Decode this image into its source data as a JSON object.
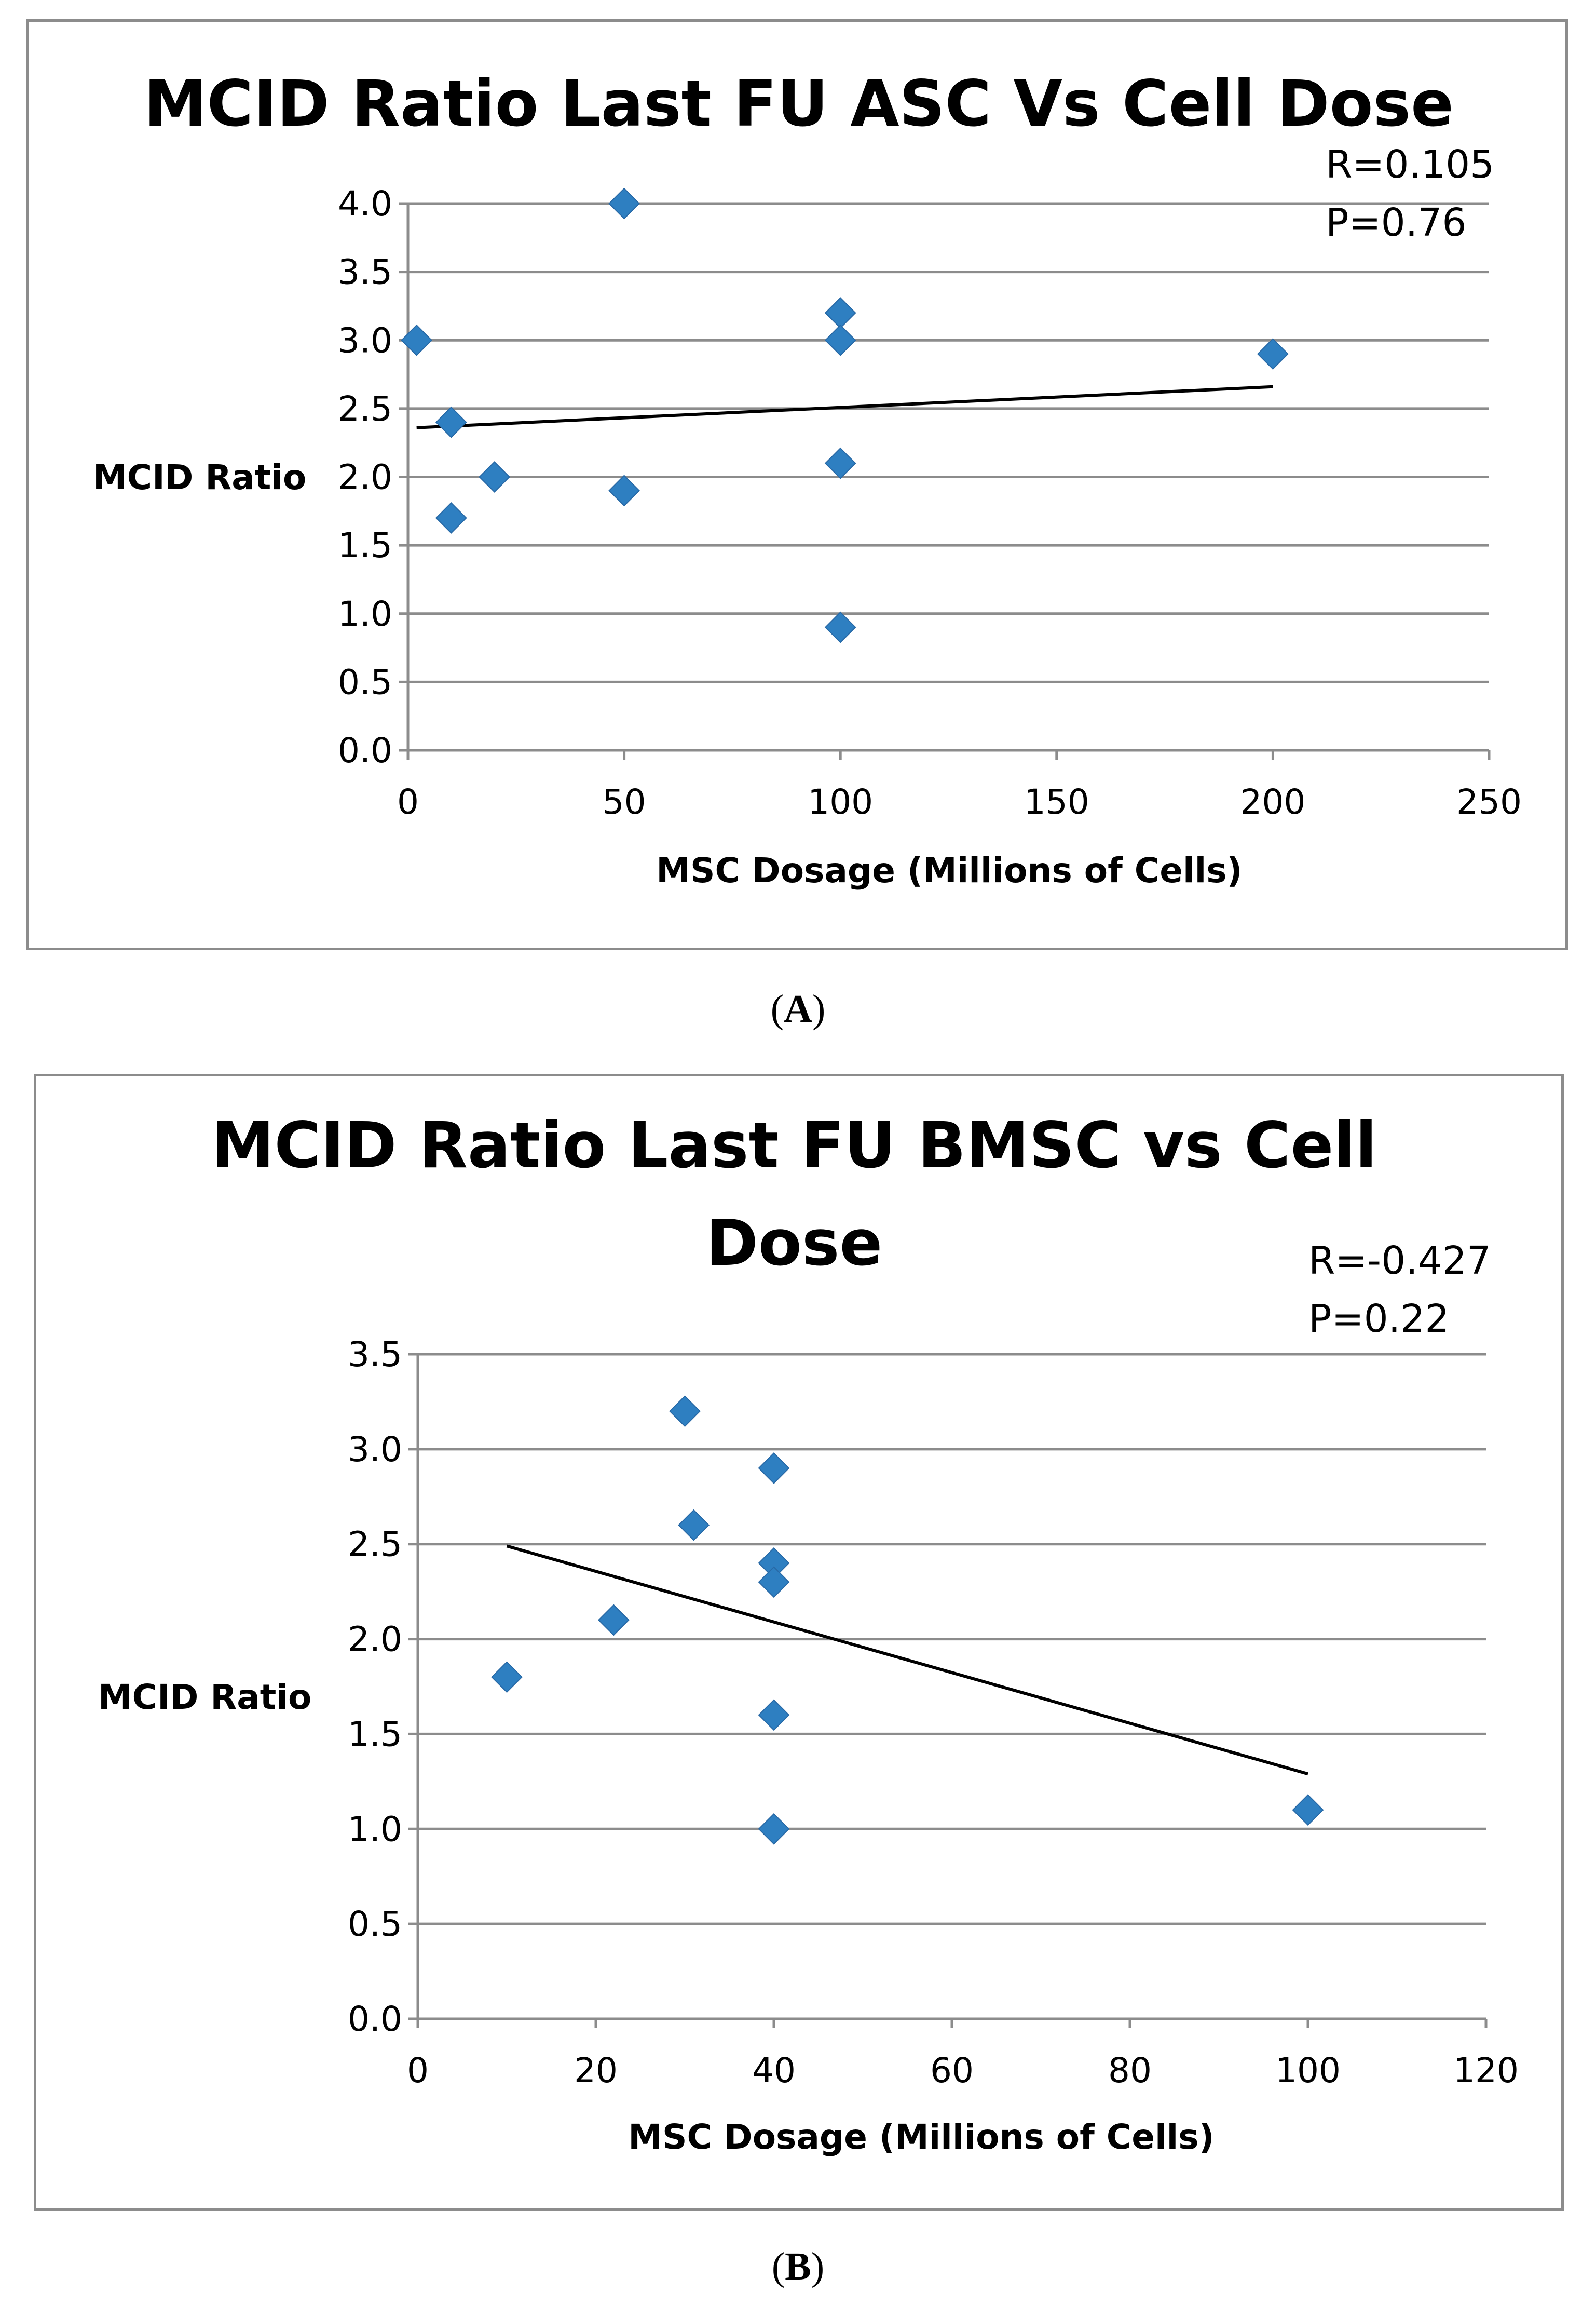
{
  "chart_data": [
    {
      "type": "scatter",
      "title": "MCID Ratio Last FU ASC Vs Cell Dose",
      "title_lines": [
        "MCID Ratio Last FU ASC Vs Cell Dose"
      ],
      "xlabel": "MSC Dosage (Millions of Cells)",
      "ylabel": "MCID Ratio",
      "xlim": [
        0,
        250
      ],
      "ylim": [
        0,
        4.0
      ],
      "x_ticks": [
        0,
        50,
        100,
        150,
        200,
        250
      ],
      "x_tick_labels": [
        "0",
        "50",
        "100",
        "150",
        "200",
        "250"
      ],
      "y_ticks": [
        0,
        0.5,
        1.0,
        1.5,
        2.0,
        2.5,
        3.0,
        3.5,
        4.0
      ],
      "y_tick_labels": [
        "0.0",
        "0.5",
        "1.0",
        "1.5",
        "2.0",
        "2.5",
        "3.0",
        "3.5",
        "4.0"
      ],
      "grid": true,
      "points": [
        {
          "x": 2,
          "y": 3.0
        },
        {
          "x": 10,
          "y": 2.4
        },
        {
          "x": 10,
          "y": 1.7
        },
        {
          "x": 20,
          "y": 2.0
        },
        {
          "x": 50,
          "y": 4.0
        },
        {
          "x": 50,
          "y": 1.9
        },
        {
          "x": 100,
          "y": 3.2
        },
        {
          "x": 100,
          "y": 3.0
        },
        {
          "x": 100,
          "y": 2.1
        },
        {
          "x": 100,
          "y": 0.9
        },
        {
          "x": 200,
          "y": 2.9
        }
      ],
      "trendline": {
        "x": [
          2,
          200
        ],
        "y": [
          2.36,
          2.66
        ]
      },
      "annotations": [
        "R=0.105",
        "P=0.76"
      ],
      "marker_color": "#2e7fc1",
      "caption": "A"
    },
    {
      "type": "scatter",
      "title": "MCID Ratio Last FU BMSC vs Cell Dose",
      "title_lines": [
        "MCID Ratio Last FU BMSC vs Cell",
        "Dose"
      ],
      "xlabel": "MSC Dosage (Millions of Cells)",
      "ylabel": "MCID Ratio",
      "xlim": [
        0,
        120
      ],
      "ylim": [
        0,
        3.5
      ],
      "x_ticks": [
        0,
        20,
        40,
        60,
        80,
        100,
        120
      ],
      "x_tick_labels": [
        "0",
        "20",
        "40",
        "60",
        "80",
        "100",
        "120"
      ],
      "y_ticks": [
        0,
        0.5,
        1.0,
        1.5,
        2.0,
        2.5,
        3.0,
        3.5
      ],
      "y_tick_labels": [
        "0.0",
        "0.5",
        "1.0",
        "1.5",
        "2.0",
        "2.5",
        "3.0",
        "3.5"
      ],
      "grid": true,
      "points": [
        {
          "x": 10,
          "y": 1.8
        },
        {
          "x": 22,
          "y": 2.1
        },
        {
          "x": 30,
          "y": 3.2
        },
        {
          "x": 31,
          "y": 2.6
        },
        {
          "x": 40,
          "y": 2.9
        },
        {
          "x": 40,
          "y": 2.4
        },
        {
          "x": 40,
          "y": 2.3
        },
        {
          "x": 40,
          "y": 1.6
        },
        {
          "x": 40,
          "y": 1.0
        },
        {
          "x": 100,
          "y": 1.1
        }
      ],
      "trendline": {
        "x": [
          10,
          100
        ],
        "y": [
          2.49,
          1.29
        ]
      },
      "annotations": [
        "R=-0.427",
        "P=0.22"
      ],
      "marker_color": "#2e7fc1",
      "caption": "B"
    }
  ],
  "captions": [
    "A",
    "B"
  ]
}
